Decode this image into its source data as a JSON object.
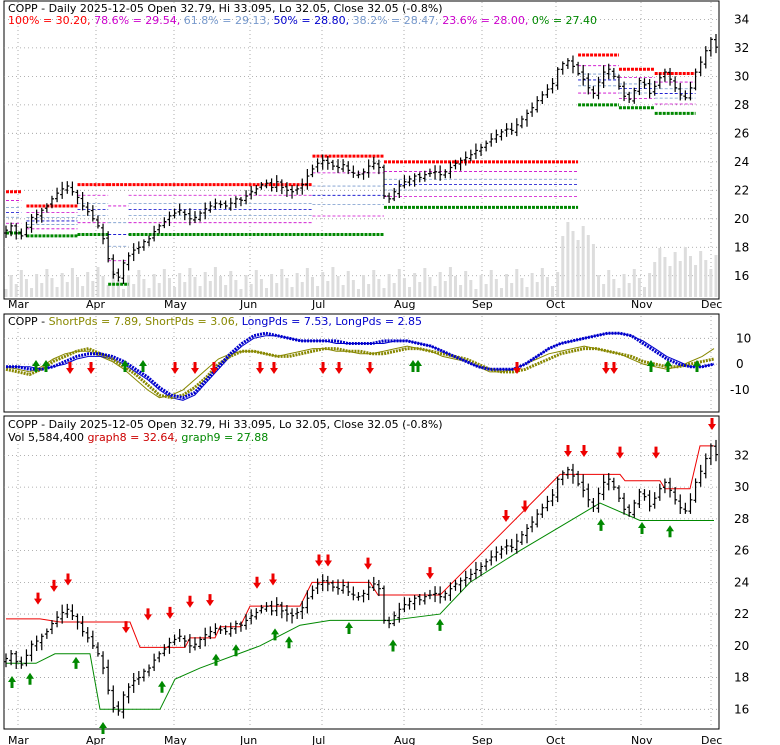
{
  "chart_data": [
    {
      "panel": "price-fibonacci",
      "type": "ohlc",
      "title_parts": [
        {
          "text": "COPP - Daily 2025-12-05 Open 32.79, Hi 33.095, Lo 32.05, Close 32.05 (-0.8%)",
          "color": "#000000"
        }
      ],
      "fib_parts": [
        {
          "text": "100% = 30.20, ",
          "color": "#ff0000"
        },
        {
          "text": "78.6% = 29.54, ",
          "color": "#cc00cc"
        },
        {
          "text": "61.8% = 29.13, ",
          "color": "#7799cc"
        },
        {
          "text": "50% = 28.80, ",
          "color": "#0000cc"
        },
        {
          "text": "38.2% = 28.47, ",
          "color": "#7799cc"
        },
        {
          "text": "23.6% = 28.00, ",
          "color": "#cc00cc"
        },
        {
          "text": "0% = 27.40",
          "color": "#008800"
        }
      ],
      "fib_levels": [
        30.2,
        29.54,
        29.13,
        28.8,
        28.47,
        28.0,
        27.4
      ],
      "x_ticks": [
        "Mar",
        "Apr",
        "May",
        "Jun",
        "Jul",
        "Aug",
        "Sep",
        "Oct",
        "Nov",
        "Dec"
      ],
      "y_ticks": [
        16,
        18,
        20,
        22,
        24,
        26,
        28,
        30,
        32,
        34
      ],
      "ylim": [
        15.0,
        34.8
      ]
    },
    {
      "panel": "oscillator",
      "type": "line",
      "title_parts": [
        {
          "text": "COPP - ",
          "color": "#000000"
        },
        {
          "text": "ShortPds = 7.89, ",
          "color": "#888800"
        },
        {
          "text": "ShortPds = 3.06, ",
          "color": "#888800"
        },
        {
          "text": "LongPds = 7.53, ",
          "color": "#0000cc"
        },
        {
          "text": "LongPds = 2.85",
          "color": "#0000cc"
        }
      ],
      "y_ticks": [
        10,
        0,
        -10
      ],
      "ylim": [
        -17,
        14
      ]
    },
    {
      "panel": "price-signals",
      "type": "ohlc",
      "title_parts": [
        {
          "text": "COPP - Daily 2025-12-05 Open 32.79, Hi 33.095, Lo 32.05, Close 32.05 (-0.8%)",
          "color": "#000000"
        }
      ],
      "subtitle_parts": [
        {
          "text": "Vol 5,584,400 ",
          "color": "#000000"
        },
        {
          "text": "graph8 = 32.64, ",
          "color": "#cc0000"
        },
        {
          "text": "graph9 = 27.88",
          "color": "#008800"
        }
      ],
      "x_ticks": [
        "Mar",
        "Apr",
        "May",
        "Jun",
        "Jul",
        "Aug",
        "Sep",
        "Oct",
        "Nov",
        "Dec"
      ],
      "y_ticks": [
        16,
        18,
        20,
        22,
        24,
        26,
        28,
        30,
        32
      ],
      "ylim": [
        15.2,
        33.6
      ]
    }
  ],
  "series_closes": [
    19.2,
    19.5,
    19.0,
    18.8,
    19.4,
    20.1,
    20.3,
    20.6,
    20.9,
    21.4,
    21.8,
    22.1,
    22.3,
    21.9,
    21.5,
    20.9,
    20.5,
    20.0,
    19.5,
    18.6,
    17.2,
    16.1,
    15.9,
    16.9,
    17.4,
    17.8,
    18.0,
    18.4,
    18.6,
    19.1,
    19.5,
    19.8,
    20.2,
    20.4,
    20.6,
    20.3,
    20.0,
    20.1,
    20.4,
    20.7,
    20.9,
    21.1,
    21.0,
    20.9,
    21.1,
    21.4,
    21.3,
    21.6,
    21.9,
    22.1,
    22.4,
    22.5,
    22.2,
    22.6,
    22.2,
    22.0,
    21.9,
    22.1,
    22.4,
    23.0,
    23.5,
    23.9,
    24.1,
    23.9,
    23.7,
    23.6,
    23.8,
    23.4,
    23.2,
    23.1,
    23.3,
    23.7,
    23.9,
    23.6,
    21.6,
    21.4,
    21.9,
    22.3,
    22.6,
    22.8,
    23.0,
    22.9,
    23.1,
    23.2,
    23.3,
    23.1,
    23.3,
    23.6,
    23.9,
    24.1,
    24.3,
    24.5,
    24.8,
    25.0,
    25.3,
    25.6,
    25.9,
    26.1,
    26.3,
    26.2,
    26.6,
    27.0,
    27.4,
    27.8,
    28.3,
    28.7,
    29.1,
    29.5,
    30.5,
    30.9,
    31.1,
    30.7,
    30.2,
    29.8,
    29.2,
    28.8,
    29.6,
    30.3,
    30.5,
    30.0,
    29.3,
    28.6,
    28.4,
    29.0,
    29.7,
    29.4,
    28.8,
    29.3,
    29.9,
    30.3,
    29.8,
    29.2,
    28.7,
    28.5,
    29.2,
    30.3,
    31.0,
    31.8,
    32.6,
    32.05
  ],
  "osc_series": {
    "short_a": [
      -2,
      -3,
      -4,
      -2,
      1,
      3,
      5,
      6,
      4,
      2,
      -1,
      -4,
      -8,
      -12,
      -13,
      -12,
      -9,
      -5,
      0,
      3,
      5,
      5,
      4,
      3,
      3,
      4,
      5,
      6,
      6,
      5,
      5,
      4,
      4,
      5,
      6,
      6,
      5,
      4,
      3,
      2,
      0,
      -2,
      -3,
      -3,
      -2,
      0,
      2,
      4,
      5,
      6,
      6,
      5,
      4,
      3,
      1,
      0,
      -1,
      -1,
      0,
      1,
      2
    ],
    "short_b": [
      -1,
      -2,
      -3,
      -1,
      2,
      4,
      5,
      5,
      3,
      1,
      -2,
      -6,
      -10,
      -13,
      -12,
      -10,
      -6,
      -2,
      2,
      4,
      5,
      5,
      4,
      3,
      4,
      5,
      6,
      6,
      5,
      5,
      4,
      4,
      5,
      6,
      7,
      6,
      5,
      3,
      2,
      1,
      -1,
      -3,
      -3,
      -2,
      0,
      2,
      4,
      5,
      6,
      7,
      6,
      5,
      4,
      2,
      0,
      -1,
      -2,
      -1,
      1,
      3,
      6
    ],
    "long_a": [
      -1,
      -1,
      -2,
      -2,
      -1,
      1,
      3,
      4,
      4,
      3,
      1,
      -2,
      -5,
      -9,
      -12,
      -13,
      -11,
      -6,
      -1,
      4,
      8,
      11,
      12,
      11,
      10,
      9,
      9,
      9,
      9,
      8,
      8,
      8,
      9,
      9,
      9,
      8,
      7,
      5,
      3,
      1,
      -1,
      -2,
      -2,
      -2,
      0,
      3,
      6,
      8,
      9,
      10,
      11,
      12,
      12,
      11,
      8,
      5,
      2,
      0,
      -1,
      -1,
      0
    ],
    "long_b": [
      -1,
      -1,
      -1,
      -2,
      -1,
      0,
      2,
      3,
      3,
      2,
      0,
      -3,
      -6,
      -10,
      -13,
      -14,
      -12,
      -7,
      -2,
      3,
      7,
      10,
      11,
      11,
      10,
      9,
      9,
      9,
      8,
      8,
      8,
      8,
      8,
      9,
      9,
      8,
      7,
      5,
      3,
      1,
      -1,
      -2,
      -2,
      -2,
      0,
      3,
      6,
      8,
      9,
      10,
      11,
      12,
      12,
      11,
      9,
      6,
      3,
      1,
      -1,
      -1,
      0
    ]
  },
  "colors": {
    "up_bar": "#000000",
    "down_bar": "#000000",
    "grid": "#999999",
    "fib_red": "#ff0000",
    "fib_green": "#008800",
    "fib_magenta": "#cc00cc",
    "fib_blue": "#0000cc",
    "sell_arrow": "#ee0000",
    "buy_arrow": "#008800",
    "osc_olive": "#888800",
    "osc_blue": "#0000cc",
    "volume": "#dddddd"
  }
}
